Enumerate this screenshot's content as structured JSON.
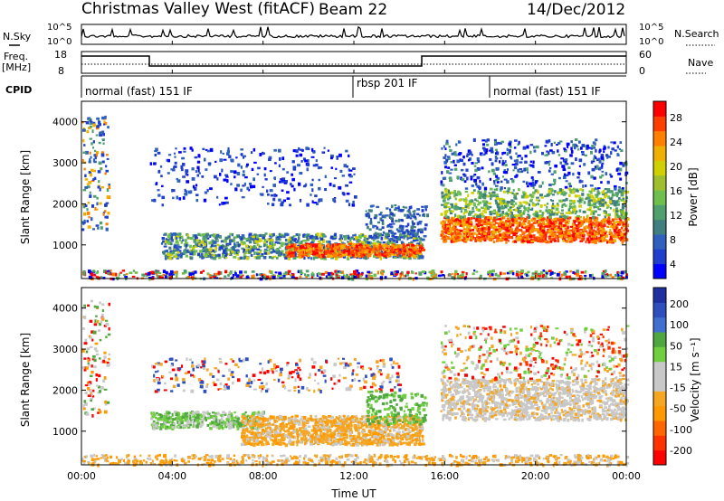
{
  "header": {
    "station": "Christmas Valley West (fitACF)",
    "beam": "Beam 22",
    "date": "14/Dec/2012"
  },
  "top_panels": {
    "nsky_label": "N.Sky",
    "nsky_ticks": [
      "10^5",
      "10^0"
    ],
    "nsearch_label": "N.Search",
    "nsearch_ticks": [
      "10^5",
      "10^0"
    ],
    "freq_label_1": "Freq.",
    "freq_label_2": "[MHz]",
    "freq_ticks": [
      "18",
      "8"
    ],
    "nave_label": "Nave",
    "nave_ticks": [
      "60",
      "0"
    ],
    "cpid_label": "CPID",
    "cpid_segments": [
      "normal (fast) 151 IF",
      "rbsp 201 IF",
      "normal (fast) 151 IF"
    ]
  },
  "chart_data": [
    {
      "type": "heatmap",
      "title": "",
      "ylabel": "Slant Range [km]",
      "xlabel": "",
      "yticks": [
        "4000",
        "3000",
        "2000",
        "1000"
      ],
      "ylim": [
        180,
        4500
      ],
      "xlim_hours": [
        0,
        24
      ],
      "colorbar": {
        "label": "Power [dB]",
        "ticks": [
          "28",
          "24",
          "20",
          "16",
          "12",
          "8",
          "4"
        ],
        "range": [
          0,
          32
        ],
        "colors": [
          "#0000ff",
          "#1f3fcc",
          "#2f5fbf",
          "#3f7f7f",
          "#4f9f6f",
          "#6fbf4f",
          "#9fbf2f",
          "#cfd000",
          "#f0b000",
          "#ff7f00",
          "#ff3f00",
          "#ff0000"
        ]
      },
      "regions": [
        {
          "t": [
            3.5,
            15.0
          ],
          "r": [
            700,
            1300
          ],
          "dominant": "blue-green"
        },
        {
          "t": [
            9.0,
            15.0
          ],
          "r": [
            750,
            1050
          ],
          "dominant": "orange-red"
        },
        {
          "t": [
            15.8,
            24.0
          ],
          "r": [
            1100,
            2400
          ],
          "dominant": "red-orange"
        },
        {
          "t": [
            3.0,
            12.0
          ],
          "r": [
            2000,
            3400
          ],
          "dominant": "blue"
        }
      ]
    },
    {
      "type": "heatmap",
      "title": "",
      "ylabel": "Slant Range [km]",
      "xlabel": "Time UT",
      "xticks": [
        "00:00",
        "04:00",
        "08:00",
        "12:00",
        "16:00",
        "20:00",
        "00:00"
      ],
      "yticks": [
        "4000",
        "3000",
        "2000",
        "1000"
      ],
      "ylim": [
        180,
        4500
      ],
      "xlim_hours": [
        0,
        24
      ],
      "colorbar": {
        "label": "Velocity [m s⁻¹]",
        "ticks": [
          "200",
          "100",
          "50",
          "15",
          "-15",
          "-50",
          "-100",
          "-200"
        ],
        "range": [
          -250,
          250
        ],
        "colors": [
          "#ff0000",
          "#ff3300",
          "#ff6600",
          "#ff9900",
          "#f5a623",
          "#c8c8c8",
          "#c8c8c8",
          "#6fcf3f",
          "#4fa83f",
          "#3f6fcf",
          "#2f4fbf",
          "#1f2fa0"
        ]
      },
      "regions": [
        {
          "t": [
            3.0,
            8.0
          ],
          "r": [
            1100,
            1500
          ],
          "dominant": "green"
        },
        {
          "t": [
            7.0,
            15.0
          ],
          "r": [
            700,
            1400
          ],
          "dominant": "orange"
        },
        {
          "t": [
            15.8,
            24.0
          ],
          "r": [
            1300,
            2300
          ],
          "dominant": "gray"
        },
        {
          "t": [
            3.0,
            14.0
          ],
          "r": [
            2000,
            2800
          ],
          "dominant": "gray"
        }
      ]
    }
  ]
}
